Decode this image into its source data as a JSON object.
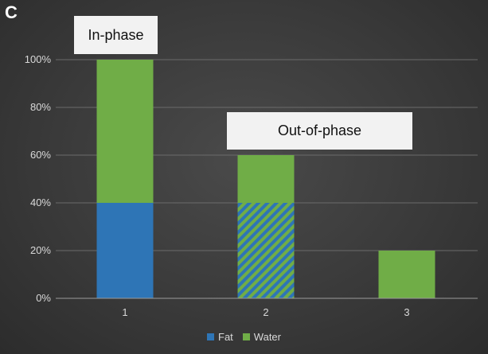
{
  "panel_letter": "C",
  "annotations": {
    "in_phase": "In-phase",
    "out_of_phase": "Out-of-phase"
  },
  "colors": {
    "fat": "#2e75b6",
    "water": "#70ad47",
    "grid": "#6b6b6b",
    "axis": "#9a9a9a"
  },
  "chart_data": {
    "type": "bar",
    "stacked": true,
    "categories": [
      "1",
      "2",
      "3"
    ],
    "series": [
      {
        "name": "Fat",
        "values": [
          40,
          40,
          0
        ],
        "pattern": [
          "solid",
          "striped",
          "solid"
        ]
      },
      {
        "name": "Water",
        "values": [
          60,
          20,
          20
        ]
      }
    ],
    "ylim": [
      0,
      100
    ],
    "yticks": [
      "0%",
      "20%",
      "40%",
      "60%",
      "80%",
      "100%"
    ],
    "grid": true,
    "legend_position": "bottom"
  }
}
